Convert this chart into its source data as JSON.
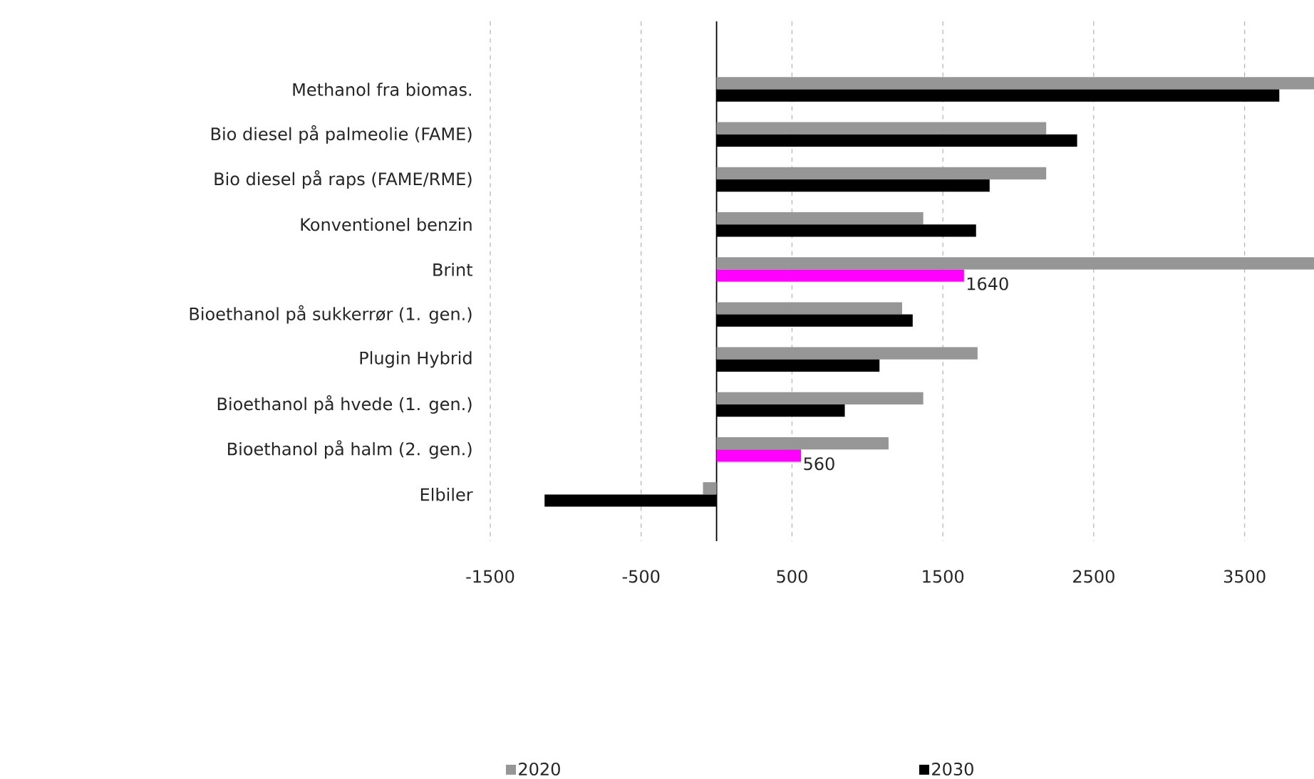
{
  "chart_data": {
    "type": "bar",
    "orientation": "horizontal",
    "categories": [
      "Methanol fra biomas.",
      "Bio diesel på palmeolie (FAME)",
      "Bio diesel på raps (FAME/RME)",
      "Konventionel benzin",
      "Brint",
      "Bioethanol på sukkerrør (1. gen.)",
      "Plugin Hybrid",
      "Bioethanol på hvede (1. gen.)",
      "Bioethanol på halm (2. gen.)",
      "Elbiler"
    ],
    "series": [
      {
        "name": "2020",
        "color": "#969696",
        "values": [
          3960,
          2185,
          2185,
          1370,
          3960,
          1230,
          1730,
          1370,
          1140,
          -90
        ]
      },
      {
        "name": "2030",
        "color": "#000000",
        "colors": [
          "#000000",
          "#000000",
          "#000000",
          "#000000",
          "#ff00ff",
          "#000000",
          "#000000",
          "#000000",
          "#ff00ff",
          "#000000"
        ],
        "values": [
          3730,
          2390,
          1810,
          1720,
          1640,
          1300,
          1080,
          850,
          560,
          -1140
        ],
        "value_labels": [
          null,
          null,
          null,
          null,
          "1640",
          null,
          null,
          null,
          "560",
          null
        ]
      }
    ],
    "xlim": [
      -1500,
      3960
    ],
    "xticks": [
      -1500,
      -500,
      500,
      1500,
      2500,
      3500
    ],
    "grid": "x",
    "legend": "bottom"
  }
}
